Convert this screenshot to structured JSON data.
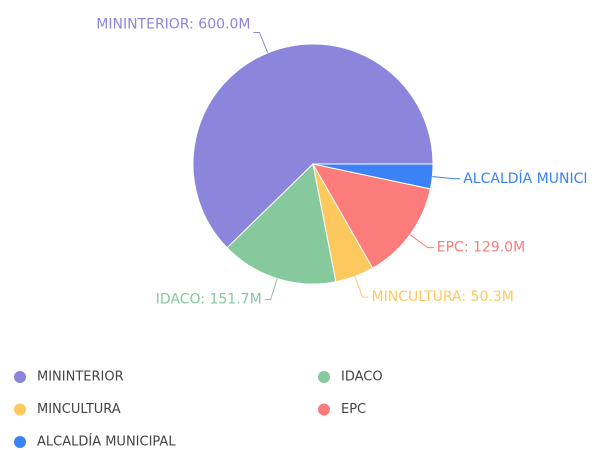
{
  "chart_data": {
    "type": "pie",
    "categories": [
      "MININTERIOR",
      "IDACO",
      "MINCULTURA",
      "EPC",
      "ALCALDÍA MUNICIPAL"
    ],
    "values": [
      600.0,
      151.7,
      50.3,
      129.0,
      32
    ],
    "value_labels": [
      "MININTERIOR: 600.0M",
      "IDACO: 151.7M",
      "MINCULTURA: 50.3M",
      "EPC: 129.0M",
      "ALCALDÍA MUNICI"
    ],
    "colors": [
      "#8b86dc",
      "#85c99d",
      "#fdc95f",
      "#fc7b7b",
      "#3b82f6"
    ],
    "legend": "bottom-left"
  }
}
